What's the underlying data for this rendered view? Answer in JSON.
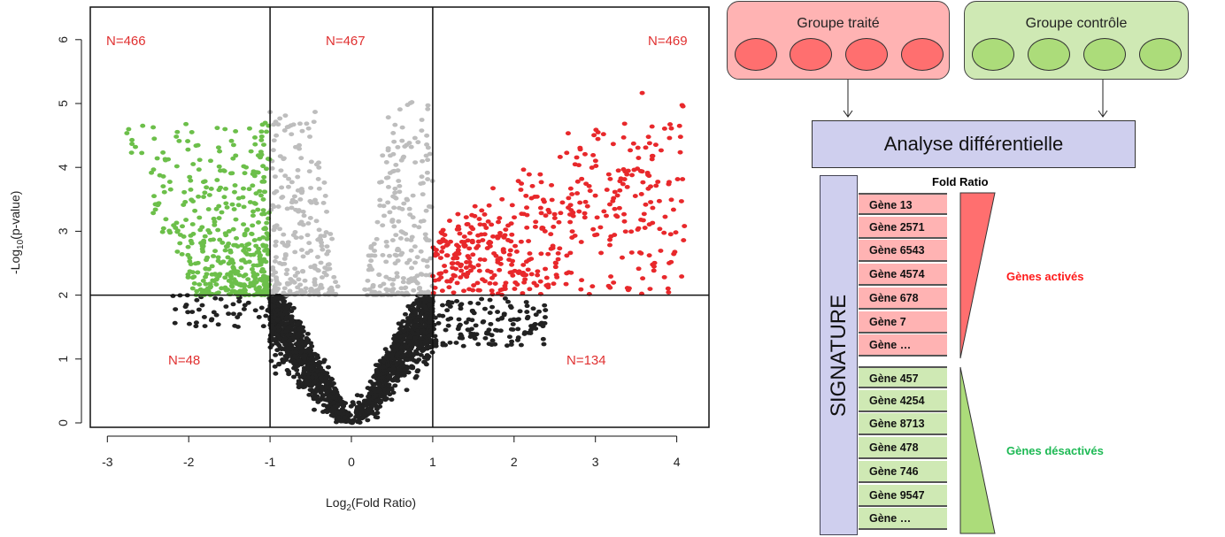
{
  "chart_data": {
    "type": "scatter",
    "title": "",
    "xlabel_main": "Log",
    "xlabel_sub": "2",
    "xlabel_rest": "(Fold Ratio)",
    "ylabel_main": "-Log",
    "ylabel_sub": "10",
    "ylabel_rest": "(p-value)",
    "xlim": [
      -3.3,
      4.3
    ],
    "ylim": [
      -0.1,
      6.5
    ],
    "xticks": [
      "-3",
      "-2",
      "-1",
      "0",
      "1",
      "2",
      "3",
      "4"
    ],
    "yticks": [
      "0",
      "1",
      "2",
      "3",
      "4",
      "5",
      "6"
    ],
    "thresholds": {
      "x": [
        -1,
        1
      ],
      "y": 2
    },
    "regions": [
      {
        "label": "N=466",
        "color": "#6cbf4a",
        "x": [
          -3,
          -1
        ],
        "y": [
          2,
          5
        ],
        "count": 466
      },
      {
        "label": "N=467",
        "color": "#bdbdbd",
        "x": [
          -1,
          1
        ],
        "y": [
          2,
          5.4
        ],
        "count": 467
      },
      {
        "label": "N=469",
        "color": "#e8282b",
        "x": [
          1,
          4.2
        ],
        "y": [
          2,
          6.3
        ],
        "count": 469
      },
      {
        "label": "N=48",
        "color": "#222222",
        "x": [
          -2.2,
          -1
        ],
        "y": [
          1.5,
          2
        ],
        "count": 48
      },
      {
        "label": "N=134",
        "color": "#222222",
        "x": [
          1,
          2.4
        ],
        "y": [
          1.2,
          2
        ],
        "count": 134
      }
    ],
    "label_color": "#e03030"
  },
  "diagram": {
    "treated_group": "Groupe traité",
    "control_group": "Groupe contrôle",
    "analysis": "Analyse différentielle",
    "signature": "SIGNATURE",
    "fold_ratio": "Fold Ratio",
    "activated_genes": [
      "Gène 13",
      "Gène 2571",
      "Gène 6543",
      "Gène 4574",
      "Gène 678",
      "Gène 7",
      "Gène …"
    ],
    "deactivated_genes": [
      "Gène 457",
      "Gène 4254",
      "Gène 8713",
      "Gène 478",
      "Gène 746",
      "Gène 9547",
      "Gène …"
    ],
    "activated_label": "Gènes activés",
    "deactivated_label": "Gènes désactivés"
  }
}
